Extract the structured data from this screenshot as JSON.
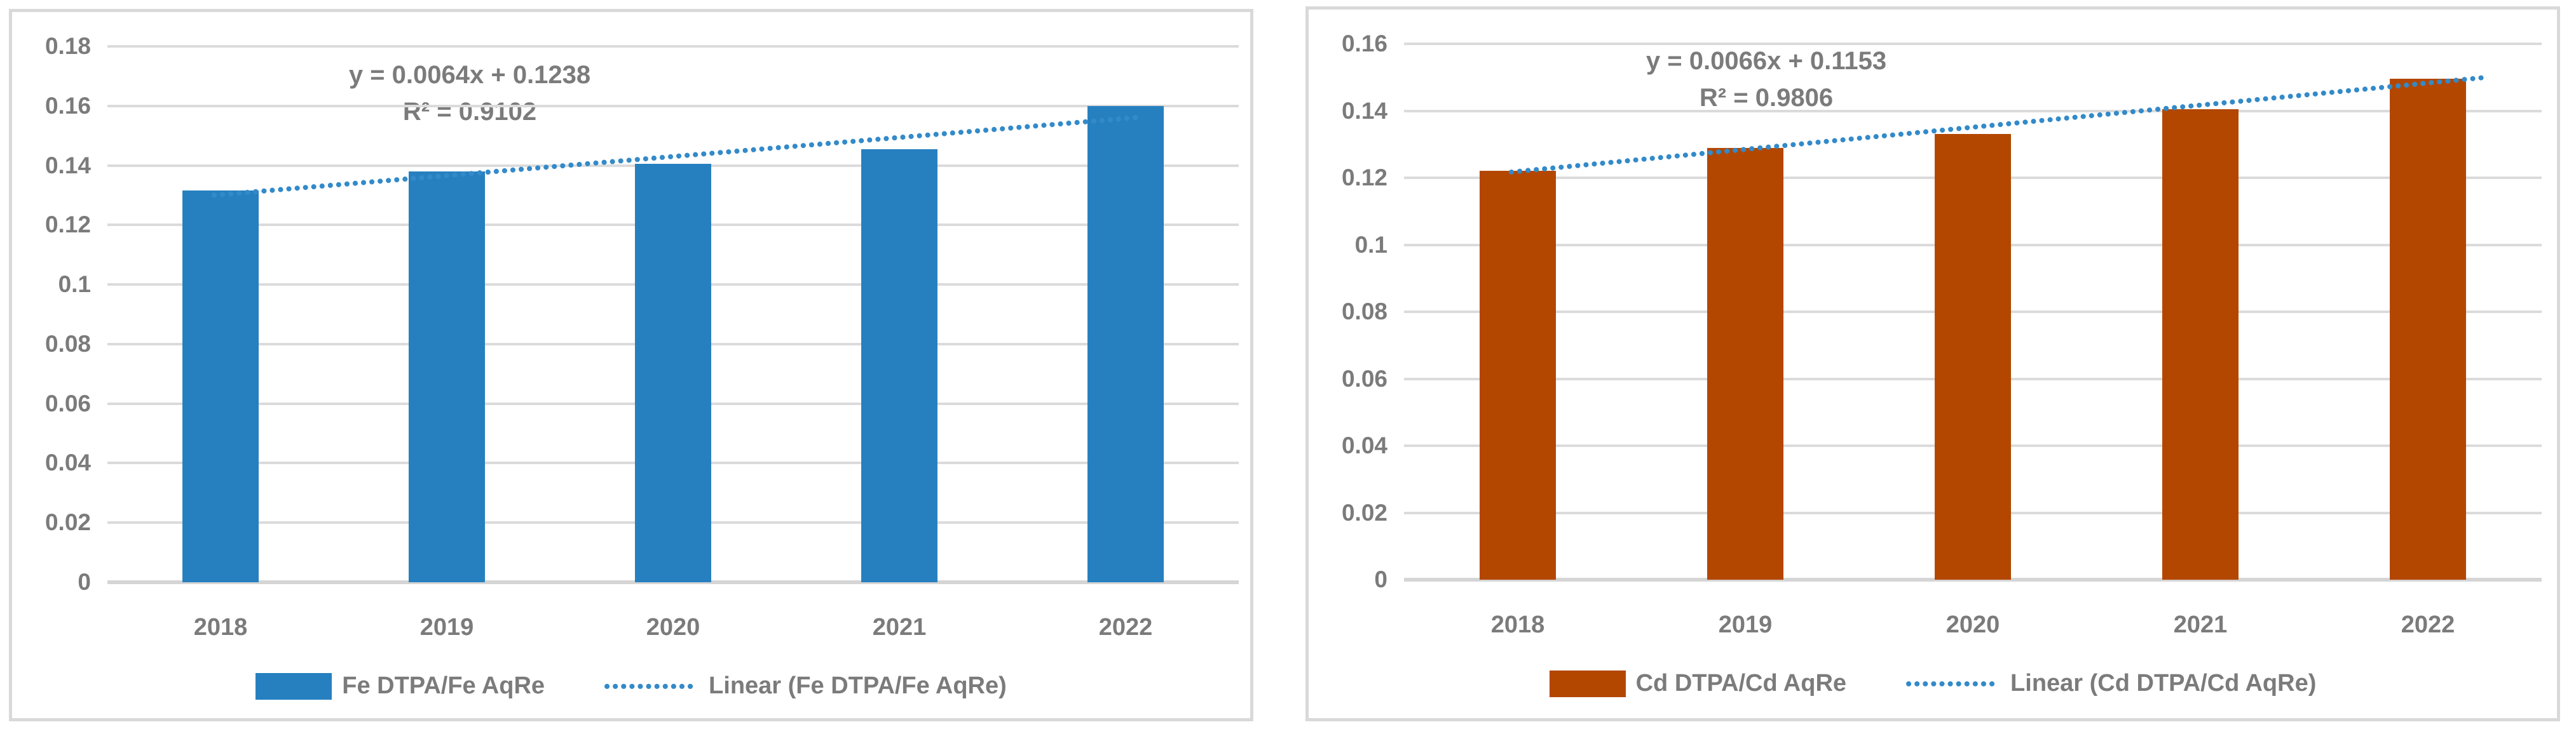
{
  "colors": {
    "fe_bar": "#2680C0",
    "cd_bar": "#B34700",
    "trendline_blue": "#338AC9",
    "text_gray": "#7B7B7B",
    "gridline_gray": "#DBDBDB",
    "panel_border_gray": "#D9D9D9"
  },
  "chart_data": [
    {
      "type": "bar",
      "series_name": "Fe DTPA/Fe AqRe",
      "categories": [
        "2018",
        "2019",
        "2020",
        "2021",
        "2022"
      ],
      "values": [
        0.1315,
        0.138,
        0.1405,
        0.1455,
        0.16
      ],
      "bar_color": "#2680C0",
      "grid": true,
      "legend_position": "bottom",
      "y_axis": {
        "min": 0,
        "max": 0.18,
        "step": 0.02,
        "tick_labels": [
          "0.18",
          "0.16",
          "0.14",
          "0.12",
          "0.1",
          "0.08",
          "0.06",
          "0.04",
          "0.02",
          "0"
        ]
      },
      "trendline": {
        "label": "Linear (Fe DTPA/Fe AqRe)",
        "equation": "y = 0.0064x + 0.1238",
        "r_squared": "R² = 0.9102",
        "slope": 0.0064,
        "intercept": 0.1238,
        "color": "#338AC9",
        "style": "dotted"
      }
    },
    {
      "type": "bar",
      "series_name": "Cd DTPA/Cd AqRe",
      "categories": [
        "2018",
        "2019",
        "2020",
        "2021",
        "2022"
      ],
      "values": [
        0.122,
        0.129,
        0.133,
        0.1405,
        0.1495
      ],
      "bar_color": "#B34700",
      "grid": true,
      "legend_position": "bottom",
      "y_axis": {
        "min": 0,
        "max": 0.16,
        "step": 0.02,
        "tick_labels": [
          "0.16",
          "0.14",
          "0.12",
          "0.1",
          "0.08",
          "0.06",
          "0.04",
          "0.02",
          "0"
        ]
      },
      "trendline": {
        "label": "Linear (Cd DTPA/Cd AqRe)",
        "equation": "y = 0.0066x + 0.1153",
        "r_squared": "R² = 0.9806",
        "slope": 0.0066,
        "intercept": 0.1153,
        "color": "#338AC9",
        "style": "dotted"
      }
    }
  ]
}
